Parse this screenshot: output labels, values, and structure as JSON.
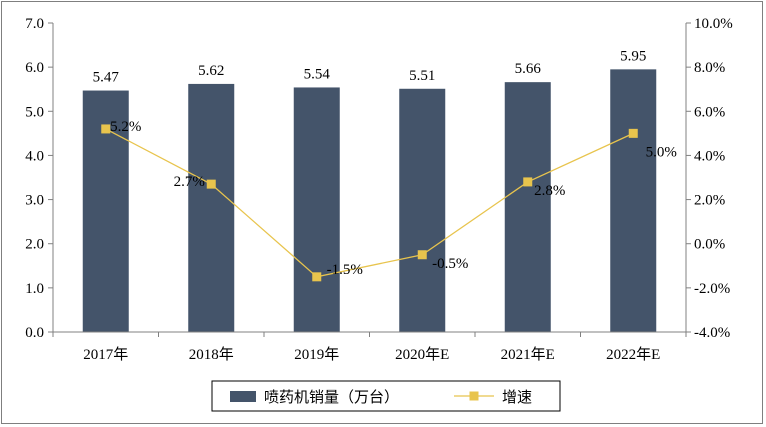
{
  "chart_data": {
    "type": "bar",
    "categories": [
      "2017年",
      "2018年",
      "2019年",
      "2020年E",
      "2021年E",
      "2022年E"
    ],
    "series": [
      {
        "name": "喷药机销量（万台）",
        "type": "bar",
        "axis": "left",
        "values": [
          5.47,
          5.62,
          5.54,
          5.51,
          5.66,
          5.95
        ],
        "labels": [
          "5.47",
          "5.62",
          "5.54",
          "5.51",
          "5.66",
          "5.95"
        ],
        "color": "#44546a"
      },
      {
        "name": "增速",
        "type": "line",
        "axis": "right",
        "values": [
          5.2,
          2.7,
          -1.5,
          -0.5,
          2.8,
          5.0
        ],
        "labels": [
          "5.2%",
          "2.7%",
          "-1.5%",
          "-0.5%",
          "2.8%",
          "5.0%"
        ],
        "color": "#e8c44d"
      }
    ],
    "left_axis": {
      "ylim": [
        0,
        7
      ],
      "ticks": [
        "0.0",
        "1.0",
        "2.0",
        "3.0",
        "4.0",
        "5.0",
        "6.0",
        "7.0"
      ]
    },
    "right_axis": {
      "ylim": [
        -4,
        10
      ],
      "ticks": [
        "-4.0%",
        "-2.0%",
        "0.0%",
        "2.0%",
        "4.0%",
        "6.0%",
        "8.0%",
        "10.0%"
      ]
    },
    "grid": false,
    "legend": "bottom-center"
  }
}
